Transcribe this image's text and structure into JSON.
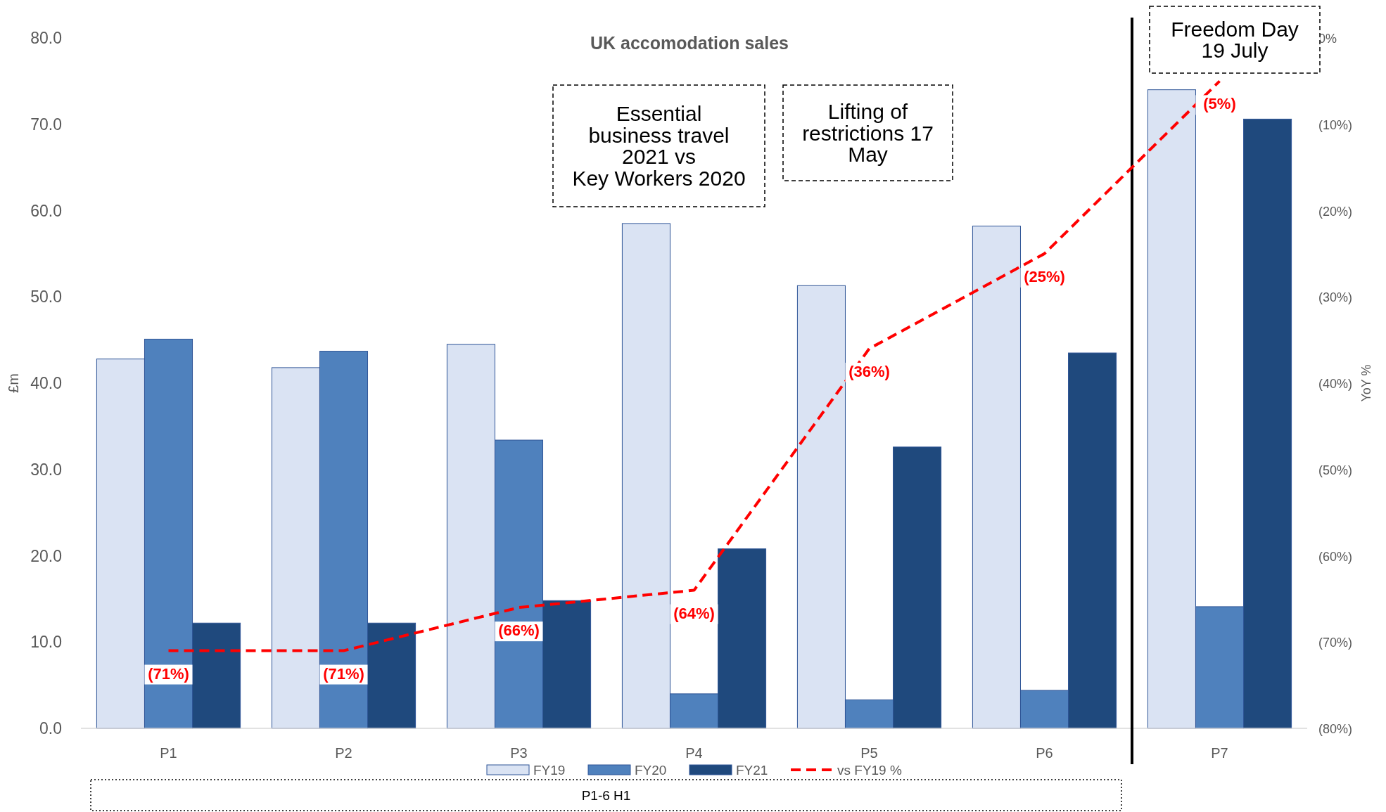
{
  "chart_data": {
    "type": "bar",
    "title": "UK accomodation sales",
    "ylabel": "£m",
    "y2label": "YoY %",
    "categories": [
      "P1",
      "P2",
      "P3",
      "P4",
      "P5",
      "P6",
      "P7"
    ],
    "series": [
      {
        "name": "FY19",
        "color": "#dae3f3",
        "values": [
          42.8,
          41.8,
          44.5,
          58.5,
          51.3,
          58.2,
          74.0
        ]
      },
      {
        "name": "FY20",
        "color": "#4f81bd",
        "values": [
          45.1,
          43.7,
          33.4,
          4.0,
          3.3,
          4.4,
          14.1
        ]
      },
      {
        "name": "FY21",
        "color": "#1f497d",
        "values": [
          12.2,
          12.2,
          14.8,
          20.8,
          32.6,
          43.5,
          70.6
        ]
      },
      {
        "name": "vs FY19 %",
        "type": "line",
        "axis": "y2",
        "color": "#ff0000",
        "line_style": "dashed",
        "values": [
          -71,
          -71,
          -66,
          -64,
          -36,
          -25,
          -5
        ],
        "value_labels": [
          "(71%)",
          "(71%)",
          "(66%)",
          "(64%)",
          "(36%)",
          "(25%)",
          "(5%)"
        ]
      }
    ],
    "ylim": [
      0,
      80
    ],
    "yticks": [
      {
        "value": 0,
        "label": "0.0"
      },
      {
        "value": 10,
        "label": "10.0"
      },
      {
        "value": 20,
        "label": "20.0"
      },
      {
        "value": 30,
        "label": "30.0"
      },
      {
        "value": 40,
        "label": "40.0"
      },
      {
        "value": 50,
        "label": "50.0"
      },
      {
        "value": 60,
        "label": "60.0"
      },
      {
        "value": 70,
        "label": "70.0"
      },
      {
        "value": 80,
        "label": "80.0"
      }
    ],
    "y2lim": [
      -80,
      0
    ],
    "y2ticks": [
      {
        "value": -80,
        "label": "(80%)"
      },
      {
        "value": -70,
        "label": "(70%)"
      },
      {
        "value": -60,
        "label": "(60%)"
      },
      {
        "value": -50,
        "label": "(50%)"
      },
      {
        "value": -40,
        "label": "(40%)"
      },
      {
        "value": -30,
        "label": "(30%)"
      },
      {
        "value": -20,
        "label": "(20%)"
      },
      {
        "value": -10,
        "label": "(10%)"
      },
      {
        "value": 0,
        "label": "0%"
      }
    ],
    "annotations": [
      "Essential\nbusiness travel\n2021 vs\nKey Workers 2020",
      "Lifting of\nrestrictions 17\nMay",
      "Freedom Day\n19 July",
      "P1-6 H1"
    ],
    "legend": "bottom"
  }
}
